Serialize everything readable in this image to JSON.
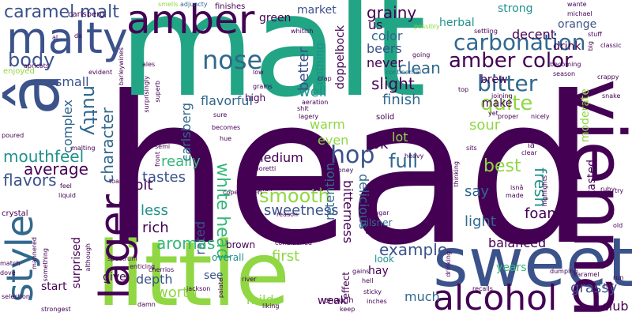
{
  "colors": {
    "dark_purple": "#440154",
    "indigo": "#3b528b",
    "blue": "#31688e",
    "teal": "#21918c",
    "green": "#35b779",
    "lime": "#90d743",
    "yellow": "#fde725"
  },
  "words": {
    "head": "head",
    "malt": "malt",
    "sweet": "sweet",
    "little": "little",
    "a_circ": "â",
    "vienna": "vienna",
    "style": "style",
    "amber": "amber",
    "malty": "malty",
    "lager": "lager",
    "alcohol": "alcohol",
    "caramel_malt": "caramel malt",
    "carbonation": "carbonation",
    "amber_color": "amber color",
    "nose": "nose",
    "bitter": "bitter",
    "quite": "quite",
    "hop": "hop",
    "white_head": "white head",
    "smooth": "smooth",
    "full": "full",
    "sweetness": "sweetness",
    "body": "body",
    "mouthfeel": "mouthfeel",
    "average": "average",
    "flavors": "flavors",
    "character": "character",
    "nutty": "nutty",
    "complex": "complex",
    "grainy": "grainy",
    "clean": "clean",
    "slight": "slight",
    "slightly": "slightly",
    "finish": "finish",
    "well": "well",
    "sour": "sour",
    "rated": "rated",
    "rich": "rich",
    "aromas": "aromas",
    "example": "example",
    "best": "best",
    "fresh": "fresh",
    "say": "say",
    "foamy": "foamy",
    "balanced": "balanced",
    "light": "light",
    "bitterness": "bitterness",
    "delicious": "delicious",
    "retention": "retention",
    "tastes": "tastes",
    "really": "really",
    "less": "less",
    "carlsberg": "carlsberg",
    "flavorful": "flavorful",
    "warm": "warm",
    "even": "even",
    "ok": "ok",
    "lot": "lot",
    "medium": "medium",
    "bit": "bit",
    "grassy": "grassy",
    "club": "club",
    "much": "much",
    "mild": "mild",
    "worth": "worth",
    "depth": "depth",
    "first": "first",
    "start": "start",
    "small": "small",
    "color": "color",
    "green": "green",
    "market": "market",
    "us": "us",
    "beers": "beers",
    "never": "never",
    "better": "better",
    "nothing": "nothing",
    "doppelbock": "doppelbock",
    "herbal": "herbal",
    "strong": "strong",
    "orange": "orange",
    "decent": "decent",
    "drink": "drink",
    "make": "make",
    "brew": "brew",
    "tasted": "tasted",
    "moderate": "moderate",
    "years": "years",
    "hay": "hay",
    "weak": "weak",
    "surprised": "surprised",
    "give": "give",
    "high": "high",
    "see": "see",
    "brown": "brown",
    "overall": "overall",
    "thin": "thin",
    "pilsner": "pilsner",
    "look": "look",
    "effect": "effect",
    "enough": "enough",
    "finishes": "finishes",
    "smells": "smells",
    "adjuncty": "adjuncty",
    "bet": "bet",
    "fine": "fine",
    "low": "low",
    "grains": "grains",
    "solid": "solid",
    "italian": "italian",
    "copenhagen": "copenhagen",
    "sugar": "sugar",
    "reason": "reason",
    "toasted": "toasted",
    "front": "front",
    "semi": "semi",
    "hue": "hue",
    "becomes": "becomes",
    "moretti": "moretti",
    "continental": "continental",
    "crap": "crap",
    "shit": "shit",
    "lagery": "lagery",
    "aeration": "aeration",
    "sure": "sure",
    "going": "going",
    "possibly": "possibly",
    "whitish": "whitish",
    "da": "da",
    "al": "al",
    "apricots": "apricots",
    "enjoyed": "enjoyed",
    "evident": "evident",
    "barleywines": "barleywines",
    "ales": "ales",
    "superb": "superb",
    "surprisingly": "surprisingly",
    "poured": "poured",
    "malting": "malting",
    "feel": "feel",
    "liquid": "liquid",
    "crystal": "crystal",
    "selection": "selection",
    "match": "match",
    "dove": "dove",
    "mannered": "mannered",
    "something": "something",
    "strongest": "strongest",
    "although": "although",
    "mowt": "mowt",
    "cherrios": "cherrios",
    "spectrum": "spectrum",
    "enticing": "enticing",
    "jackson": "jackson",
    "damn": "damn",
    "palate": "palate",
    "river": "river",
    "liking": "liking",
    "keep": "keep",
    "gains": "gains",
    "hell": "hell",
    "sticky": "sticky",
    "inches": "inches",
    "conditioned": "conditioned",
    "money": "money",
    "heavy": "heavy",
    "mj": "mj",
    "sits": "sits",
    "thinking": "thinking",
    "drinking": "drinking",
    "recalls": "recalls",
    "dumping": "dumping",
    "caramel": "caramel",
    "hat": "hat",
    "run": "run",
    "isna": "isnâ",
    "made": "made",
    "ruby": "ruby",
    "try": "try",
    "old": "old",
    "clear": "clear",
    "ia": "iâ",
    "highlights": "highlights",
    "nicely": "nicely",
    "proper": "proper",
    "yet": "yet",
    "joining": "joining",
    "top": "top",
    "snake": "snake",
    "season": "season",
    "crappy": "crappy",
    "big": "big",
    "stuff": "stuff",
    "classic": "classic",
    "michael": "michael",
    "wante": "wante",
    "becoming": "becoming",
    "settling": "settling",
    "fine2": "fine"
  }
}
